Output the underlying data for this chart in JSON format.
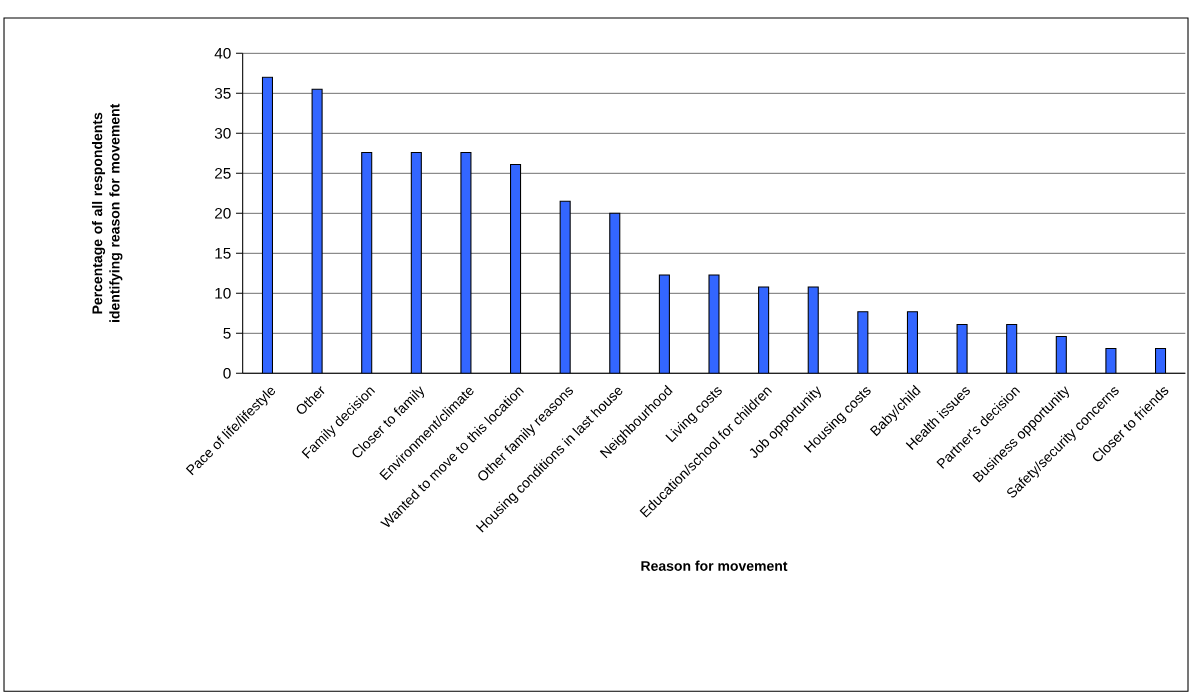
{
  "chart_data": {
    "type": "bar",
    "xlabel": "Reason for movement",
    "ylabel": "Percentage of all respondents identifying reason for movement",
    "categories": [
      "Pace of life/lifestyle",
      "Other",
      "Family decision",
      "Closer to family",
      "Environment/climate",
      "Wanted to move to this location",
      "Other family reasons",
      "Housing conditions in last house",
      "Neighbourhood",
      "Living costs",
      "Education/school for children",
      "Job opportunity",
      "Housing costs",
      "Baby/child",
      "Health issues",
      "Partner's decision",
      "Business opportunity",
      "Safety/security concerns",
      "Closer to friends"
    ],
    "values": [
      37,
      35.5,
      27.6,
      27.6,
      27.6,
      26.1,
      21.5,
      20,
      12.3,
      12.3,
      10.8,
      10.8,
      7.7,
      7.7,
      6.1,
      6.1,
      4.6,
      3.1,
      3.1
    ],
    "color": "#3366ff",
    "ylim": [
      0,
      40
    ],
    "yticks": [
      0,
      5,
      10,
      15,
      20,
      25,
      30,
      35,
      40
    ],
    "grid": "y"
  }
}
